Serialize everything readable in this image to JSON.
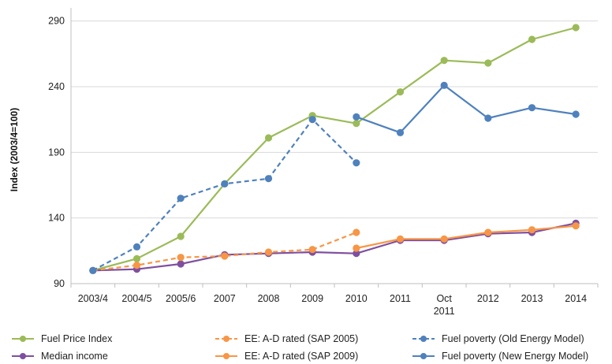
{
  "chart_data": {
    "type": "line",
    "title": "",
    "xlabel": "",
    "ylabel": "Index (2003/4=100)",
    "categories": [
      "2003/4",
      "2004/5",
      "2005/6",
      "2007",
      "2008",
      "2009",
      "2010",
      "2011",
      "Oct\n2011",
      "2012",
      "2013",
      "2014"
    ],
    "ylim": [
      90,
      300
    ],
    "yticks": [
      90,
      140,
      190,
      240,
      290
    ],
    "grid": "horizontal",
    "legend_position": "bottom",
    "series": [
      {
        "name": "Fuel Price Index",
        "color": "#9bbb59",
        "dashed": false,
        "values": [
          100,
          109,
          126,
          166,
          201,
          218,
          212,
          236,
          260,
          258,
          276,
          285
        ]
      },
      {
        "name": "Median income",
        "color": "#7f4f9f",
        "dashed": false,
        "values": [
          100,
          101,
          105,
          112,
          113,
          114,
          113,
          123,
          123,
          128,
          129,
          136
        ]
      },
      {
        "name": "EE: A-D rated (SAP 2005)",
        "color": "#f79646",
        "dashed": true,
        "values": [
          100,
          104,
          110,
          111,
          114,
          116,
          129,
          null,
          null,
          null,
          null,
          null
        ]
      },
      {
        "name": "EE: A-D rated (SAP 2009)",
        "color": "#f79646",
        "dashed": false,
        "values": [
          null,
          null,
          null,
          null,
          null,
          null,
          117,
          124,
          124,
          129,
          131,
          134
        ]
      },
      {
        "name": "Fuel poverty (Old Energy Model)",
        "color": "#4f81bd",
        "dashed": true,
        "values": [
          100,
          118,
          155,
          166,
          170,
          215,
          182,
          null,
          null,
          null,
          null,
          null
        ]
      },
      {
        "name": "Fuel poverty (New Energy Model)",
        "color": "#4f81bd",
        "dashed": false,
        "values": [
          null,
          null,
          null,
          null,
          null,
          null,
          217,
          205,
          241,
          216,
          224,
          219
        ]
      }
    ]
  },
  "legend_order": [
    "Fuel Price Index",
    "EE: A-D rated (SAP 2005)",
    "Fuel poverty (Old Energy Model)",
    "Median income",
    "EE: A-D rated (SAP 2009)",
    "Fuel poverty (New Energy Model)"
  ]
}
